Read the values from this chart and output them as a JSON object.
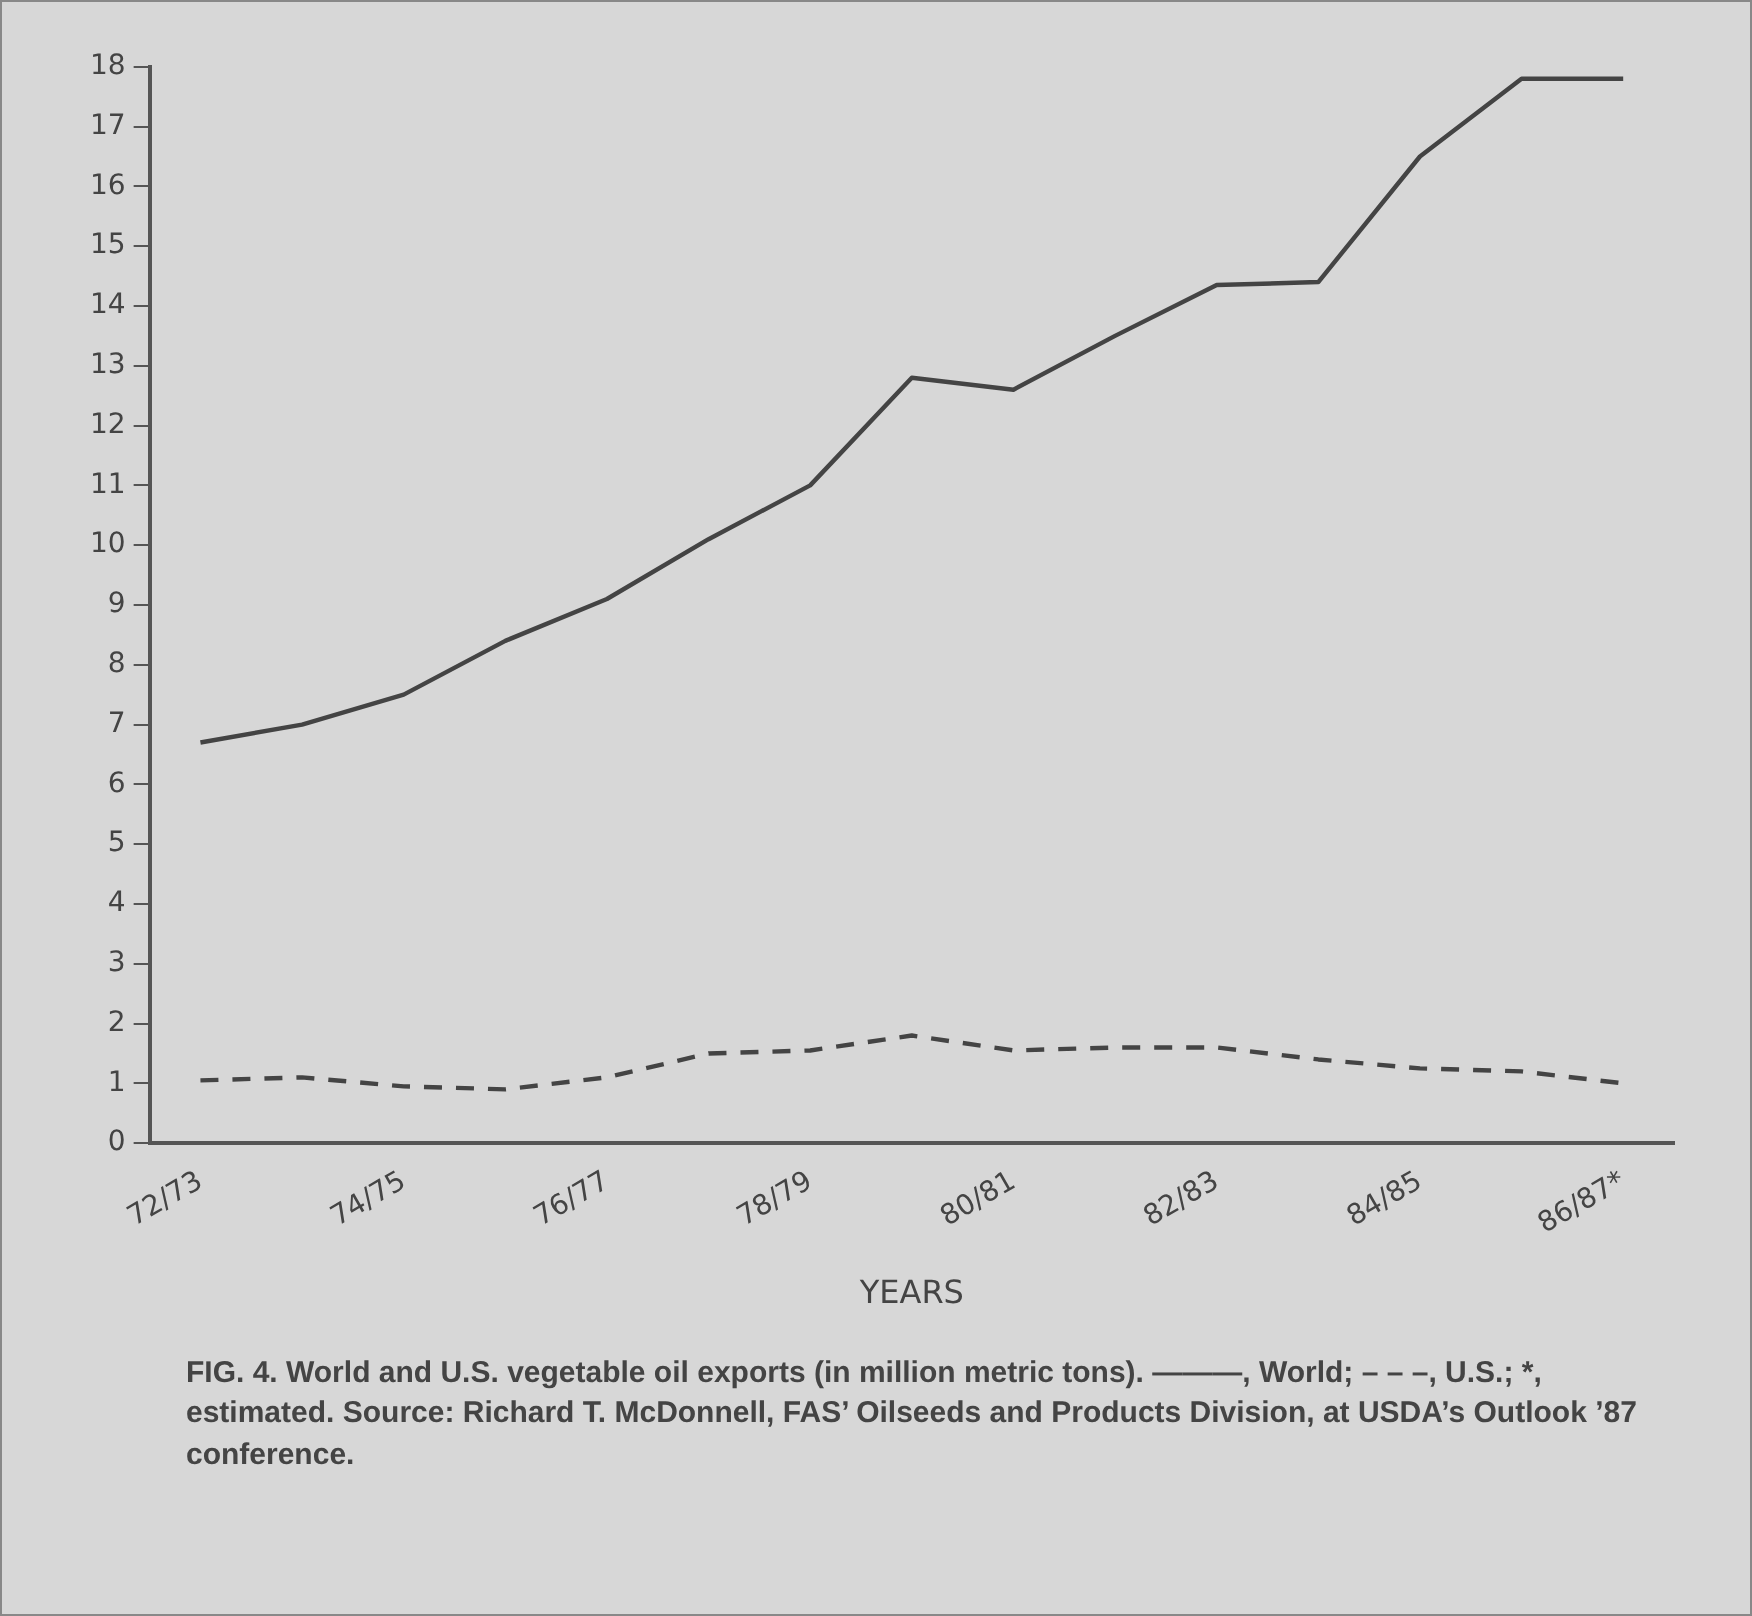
{
  "chart_data": {
    "type": "line",
    "xlabel": "YEARS",
    "categories": [
      "72/73",
      null,
      "74/75",
      null,
      "76/77",
      null,
      "78/79",
      null,
      "80/81",
      null,
      "82/83",
      null,
      "84/85",
      null,
      "86/87*"
    ],
    "series": [
      {
        "color": "#444444",
        "line_style": "solid",
        "values": [
          6.7,
          7.0,
          7.5,
          8.4,
          9.1,
          10.1,
          11.0,
          12.8,
          12.6,
          13.5,
          14.35,
          14.4,
          16.5,
          17.8,
          17.8
        ]
      },
      {
        "color": "#444444",
        "line_style": "dashed",
        "values": [
          1.05,
          1.1,
          0.95,
          0.9,
          1.1,
          1.5,
          1.55,
          1.8,
          1.55,
          1.6,
          1.6,
          1.4,
          1.25,
          1.2,
          1.0
        ]
      }
    ],
    "ylim": [
      0,
      18
    ],
    "yticks": [
      0,
      1,
      2,
      3,
      4,
      5,
      6,
      7,
      8,
      9,
      10,
      11,
      12,
      13,
      14,
      15,
      16,
      17,
      18
    ],
    "grid": false,
    "legend": false,
    "marker": "none",
    "annotations": [
      "FIG. 4. World and U.S. vegetable oil exports (in million metric tons). ———, World; – – –, U.S.; *, estimated. Source: Richard T. McDonnell, FAS’ Oilseeds and Products Division, at USDA’s Outlook ’87 conference."
    ]
  }
}
